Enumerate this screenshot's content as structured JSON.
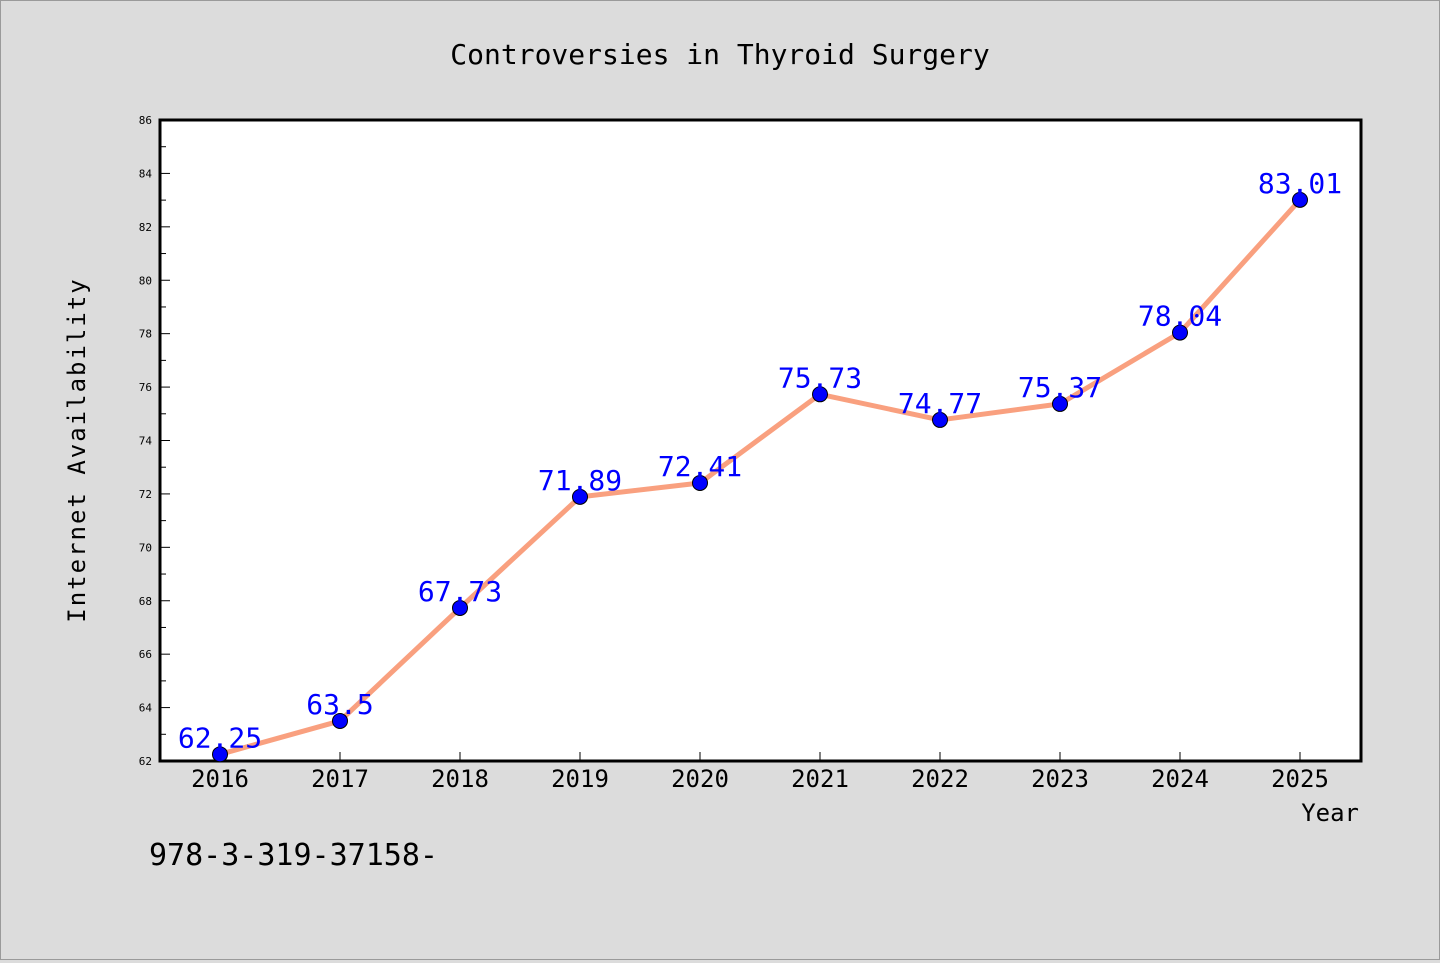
{
  "colors": {
    "background": "#dcdcdc",
    "plot_background": "#ffffff",
    "line": "#f9a07f",
    "marker": "#0000ff",
    "data_label": "#0000ff",
    "text": "#000000"
  },
  "chart_data": {
    "type": "line",
    "title": "Controversies in Thyroid Surgery",
    "xlabel": "Year",
    "ylabel": "Internet Availability",
    "categories": [
      "2016",
      "2017",
      "2018",
      "2019",
      "2020",
      "2021",
      "2022",
      "2023",
      "2024",
      "2025"
    ],
    "series": [
      {
        "values": [
          62.25,
          63.5,
          67.73,
          71.89,
          72.41,
          75.73,
          74.77,
          75.37,
          78.04,
          83.01
        ],
        "data_labels": [
          "62.25",
          "63.5",
          "67.73",
          "71.89",
          "72.41",
          "75.73",
          "74.77",
          "75.37",
          "78.04",
          "83.01"
        ]
      }
    ],
    "ylim": [
      62,
      86
    ],
    "yticks": [
      62,
      64,
      66,
      68,
      70,
      72,
      74,
      76,
      78,
      80,
      82,
      84,
      86
    ],
    "ytick_labels": [
      "62",
      "64",
      "66",
      "68",
      "70",
      "72",
      "74",
      "76",
      "78",
      "80",
      "82",
      "84",
      "86"
    ],
    "grid": false,
    "legend": "none",
    "footnote": "978-3-319-37158-"
  }
}
